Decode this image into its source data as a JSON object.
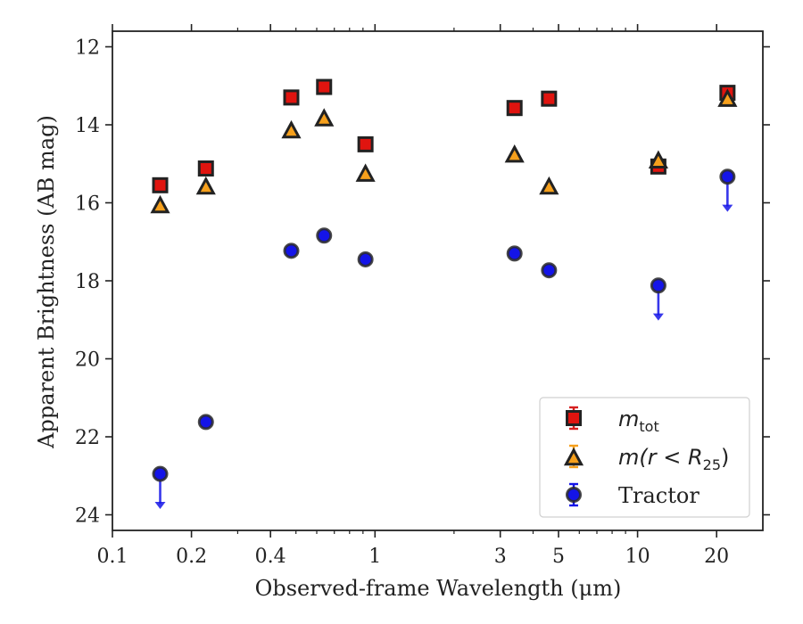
{
  "chart_data": {
    "type": "scatter",
    "xlabel": "Observed-frame Wavelength (μm)",
    "ylabel": "Apparent Brightness (AB mag)",
    "xscale": "log",
    "xlim": [
      0.1,
      30
    ],
    "ylim": [
      24.4,
      11.6
    ],
    "y_inverted": true,
    "xticks": [
      {
        "value": 0.1,
        "label": "0.1"
      },
      {
        "value": 0.2,
        "label": "0.2"
      },
      {
        "value": 0.4,
        "label": "0.4"
      },
      {
        "value": 1,
        "label": "1"
      },
      {
        "value": 3,
        "label": "3"
      },
      {
        "value": 5,
        "label": "5"
      },
      {
        "value": 10,
        "label": "10"
      },
      {
        "value": 20,
        "label": "20"
      }
    ],
    "yticks": [
      12,
      14,
      16,
      18,
      20,
      22,
      24
    ],
    "legend_position": "lower-right",
    "legend": [
      {
        "series": "m_tot",
        "base": "m",
        "sub": "tot",
        "suffix": "",
        "color": "#e0140f",
        "bar_color": "#d62020",
        "marker": "square"
      },
      {
        "series": "m_r25",
        "base": "m(r < R",
        "sub": "25",
        "suffix": ")",
        "color": "#f6a01c",
        "bar_color": "#f6a01c",
        "marker": "triangle"
      },
      {
        "series": "tractor",
        "base": "Tractor",
        "sub": "",
        "suffix": "",
        "color": "#1414e8",
        "bar_color": "#1414e8",
        "marker": "circle"
      }
    ],
    "series": [
      {
        "name": "m_tot",
        "marker": "square",
        "color": "#e0140f",
        "points": [
          {
            "x": 0.152,
            "y": 15.55
          },
          {
            "x": 0.227,
            "y": 15.12
          },
          {
            "x": 0.48,
            "y": 13.3
          },
          {
            "x": 0.64,
            "y": 13.03
          },
          {
            "x": 0.92,
            "y": 14.5
          },
          {
            "x": 3.4,
            "y": 13.57
          },
          {
            "x": 4.6,
            "y": 13.33
          },
          {
            "x": 12.0,
            "y": 15.07
          },
          {
            "x": 22.0,
            "y": 13.18
          }
        ]
      },
      {
        "name": "m_r25",
        "marker": "triangle",
        "color": "#f6a01c",
        "points": [
          {
            "x": 0.152,
            "y": 16.08
          },
          {
            "x": 0.227,
            "y": 15.6
          },
          {
            "x": 0.48,
            "y": 14.16
          },
          {
            "x": 0.64,
            "y": 13.85
          },
          {
            "x": 0.92,
            "y": 15.27
          },
          {
            "x": 3.4,
            "y": 14.78
          },
          {
            "x": 4.6,
            "y": 15.6
          },
          {
            "x": 12.0,
            "y": 14.93
          },
          {
            "x": 22.0,
            "y": 13.35
          }
        ]
      },
      {
        "name": "tractor",
        "marker": "circle",
        "color": "#1414e8",
        "points": [
          {
            "x": 0.152,
            "y": 22.95,
            "upper_limit": true
          },
          {
            "x": 0.227,
            "y": 21.62
          },
          {
            "x": 0.48,
            "y": 17.23
          },
          {
            "x": 0.64,
            "y": 16.84
          },
          {
            "x": 0.92,
            "y": 17.45
          },
          {
            "x": 3.4,
            "y": 17.3
          },
          {
            "x": 4.6,
            "y": 17.73
          },
          {
            "x": 12.0,
            "y": 18.12,
            "upper_limit": true
          },
          {
            "x": 22.0,
            "y": 15.33,
            "upper_limit": true
          }
        ]
      }
    ]
  }
}
